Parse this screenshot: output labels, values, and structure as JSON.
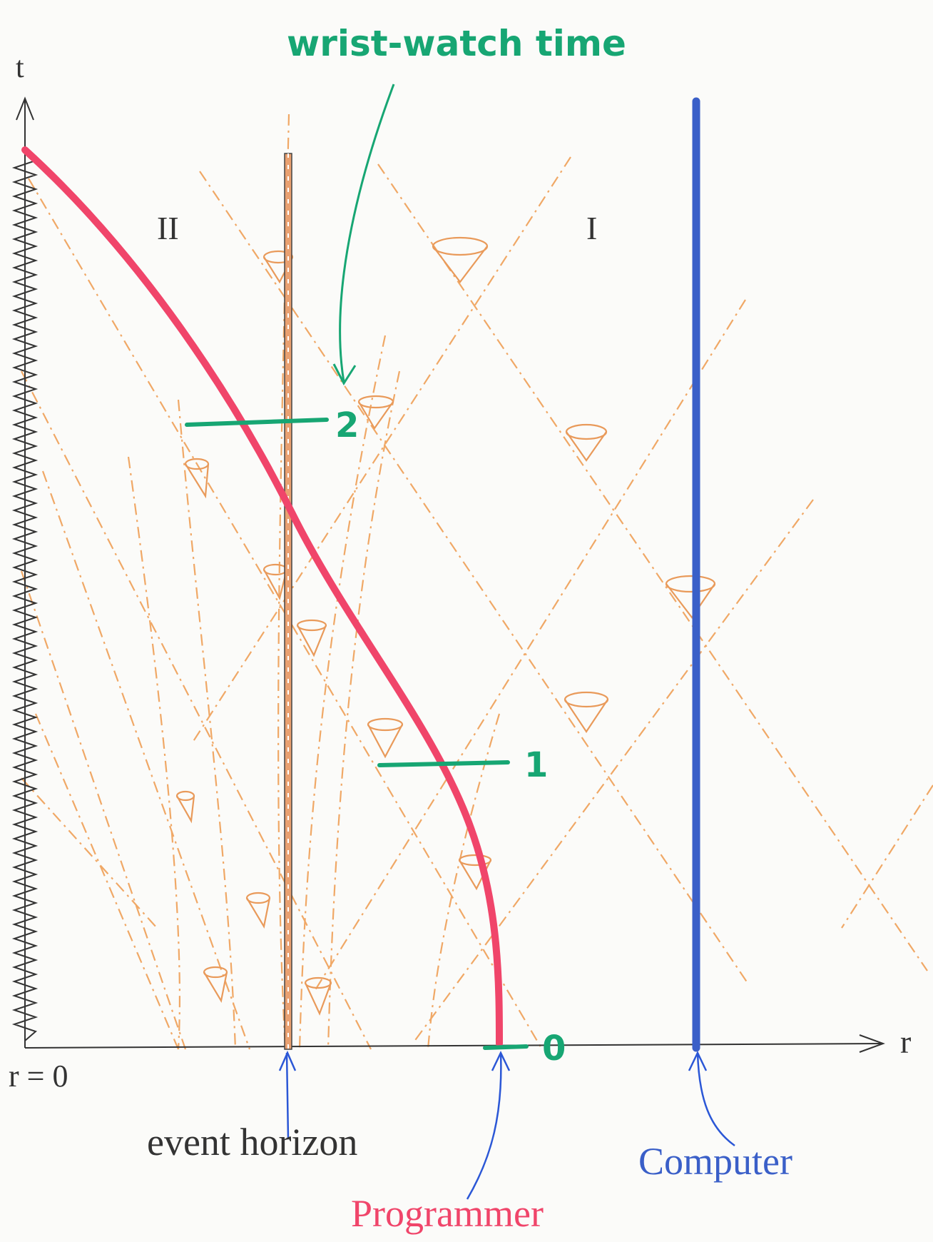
{
  "axes": {
    "time_label": "t",
    "radius_label": "r",
    "origin_label": "r = 0"
  },
  "regions": {
    "inside": "II",
    "outside": "I"
  },
  "annotations": {
    "wrist_watch": "wrist-watch time",
    "tick_0": "0",
    "tick_1": "1",
    "tick_2": "2",
    "event_horizon": "event horizon",
    "computer": "Computer",
    "programmer": "Programmer"
  },
  "colors": {
    "programmer": "#f0456a",
    "computer": "#3a5fc8",
    "wrist_watch": "#17a673",
    "light_cones": "#f0a866",
    "axis": "#333333",
    "arrow_pointer": "#2b57d6",
    "event_horizon_label": "#333333"
  }
}
